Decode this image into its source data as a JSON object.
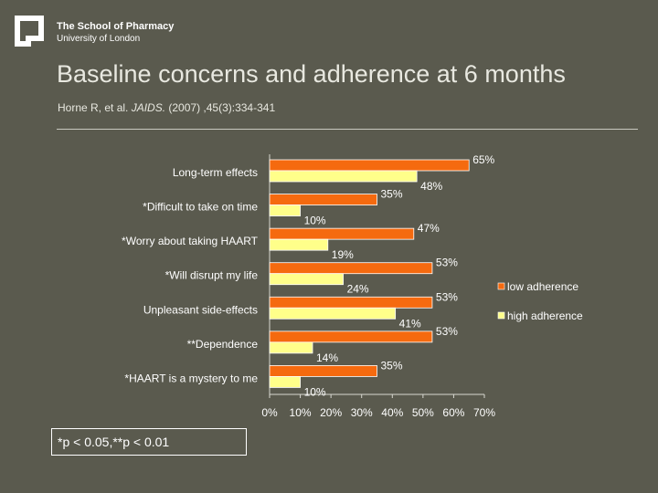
{
  "header": {
    "org_line1": "The School of Pharmacy",
    "org_line2": "University of London"
  },
  "slide": {
    "title": "Baseline concerns and adherence at 6 months",
    "citation_prefix": "Horne R,  et al. ",
    "citation_journal": "JAIDS.",
    "citation_suffix": " (2007) ,45(3):334-341",
    "note": "*p < 0.05,**p < 0.01"
  },
  "colors": {
    "background": "#5a5a4e",
    "low_adherence": "#f56a0f",
    "high_adherence": "#ffff8a"
  },
  "chart_data": {
    "type": "bar",
    "orientation": "horizontal",
    "categories": [
      "Long-term effects",
      "*Difficult to take on time",
      "*Worry about taking HAART",
      "*Will disrupt my life",
      "Unpleasant side-effects",
      "**Dependence",
      "*HAART is a mystery to me"
    ],
    "series": [
      {
        "name": "low adherence",
        "values": [
          65,
          35,
          47,
          53,
          53,
          53,
          35
        ],
        "labels": [
          "65%",
          "35%",
          "47%",
          "53%",
          "53%",
          "53%",
          "35%"
        ]
      },
      {
        "name": "high adherence",
        "values": [
          48,
          10,
          19,
          24,
          41,
          14,
          10
        ],
        "labels": [
          "48%",
          "10%",
          "19%",
          "24%",
          "41%",
          "14%",
          "10%"
        ]
      }
    ],
    "xlim": [
      0,
      70
    ],
    "x_ticks": [
      "0%",
      "10%",
      "20%",
      "30%",
      "40%",
      "50%",
      "60%",
      "70%"
    ],
    "legend_position": "right",
    "grid": false
  }
}
